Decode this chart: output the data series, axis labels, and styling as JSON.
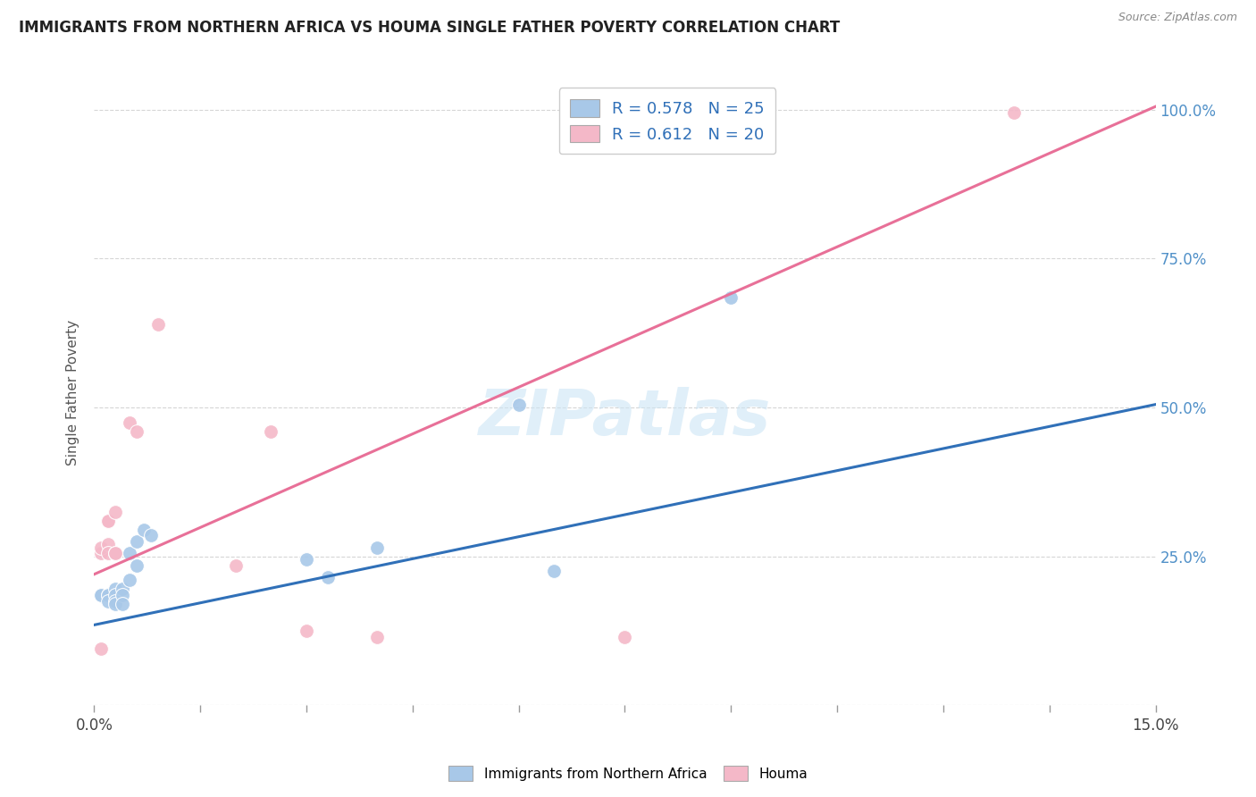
{
  "title": "IMMIGRANTS FROM NORTHERN AFRICA VS HOUMA SINGLE FATHER POVERTY CORRELATION CHART",
  "source": "Source: ZipAtlas.com",
  "ylabel": "Single Father Poverty",
  "legend_label_blue": "Immigrants from Northern Africa",
  "legend_label_pink": "Houma",
  "R_blue": 0.578,
  "N_blue": 25,
  "R_pink": 0.612,
  "N_pink": 20,
  "blue_color": "#a8c8e8",
  "pink_color": "#f4b8c8",
  "blue_line_color": "#3070b8",
  "pink_line_color": "#e87098",
  "blue_scatter": [
    [
      0.001,
      0.185
    ],
    [
      0.001,
      0.185
    ],
    [
      0.001,
      0.185
    ],
    [
      0.002,
      0.185
    ],
    [
      0.002,
      0.185
    ],
    [
      0.002,
      0.175
    ],
    [
      0.003,
      0.195
    ],
    [
      0.003,
      0.185
    ],
    [
      0.003,
      0.175
    ],
    [
      0.003,
      0.17
    ],
    [
      0.004,
      0.195
    ],
    [
      0.004,
      0.185
    ],
    [
      0.004,
      0.17
    ],
    [
      0.005,
      0.255
    ],
    [
      0.005,
      0.21
    ],
    [
      0.006,
      0.275
    ],
    [
      0.006,
      0.235
    ],
    [
      0.007,
      0.295
    ],
    [
      0.008,
      0.285
    ],
    [
      0.03,
      0.245
    ],
    [
      0.033,
      0.215
    ],
    [
      0.04,
      0.265
    ],
    [
      0.06,
      0.505
    ],
    [
      0.065,
      0.225
    ],
    [
      0.09,
      0.685
    ]
  ],
  "pink_scatter": [
    [
      0.001,
      0.095
    ],
    [
      0.001,
      0.255
    ],
    [
      0.001,
      0.265
    ],
    [
      0.002,
      0.27
    ],
    [
      0.002,
      0.255
    ],
    [
      0.002,
      0.31
    ],
    [
      0.002,
      0.31
    ],
    [
      0.003,
      0.325
    ],
    [
      0.003,
      0.255
    ],
    [
      0.003,
      0.255
    ],
    [
      0.005,
      0.475
    ],
    [
      0.006,
      0.46
    ],
    [
      0.009,
      0.64
    ],
    [
      0.02,
      0.235
    ],
    [
      0.025,
      0.46
    ],
    [
      0.03,
      0.125
    ],
    [
      0.04,
      0.115
    ],
    [
      0.075,
      0.115
    ],
    [
      0.09,
      0.995
    ],
    [
      0.13,
      0.995
    ]
  ],
  "xlim": [
    0,
    0.15
  ],
  "ylim": [
    0,
    1.05
  ],
  "blue_line_x0y": [
    0,
    0.135
  ],
  "blue_line_x1y": [
    0.15,
    0.505
  ],
  "pink_line_x0y": [
    0,
    0.22
  ],
  "pink_line_x1y": [
    0.15,
    1.005
  ],
  "background_color": "#ffffff",
  "grid_color": "#cccccc",
  "watermark": "ZIPatlas"
}
